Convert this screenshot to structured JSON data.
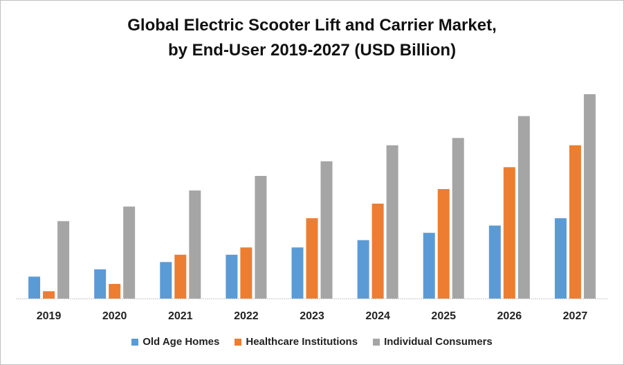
{
  "chart_data": {
    "type": "bar",
    "title": "Global Electric Scooter Lift and Carrier Market,",
    "subtitle": "by End-User 2019-2027 (USD Billion)",
    "xlabel": "",
    "ylabel": "",
    "categories": [
      "2019",
      "2020",
      "2021",
      "2022",
      "2023",
      "2024",
      "2025",
      "2026",
      "2027"
    ],
    "series": [
      {
        "name": "Old Age Homes",
        "color": "#5B9BD5",
        "values": [
          1.5,
          2.0,
          2.5,
          3.0,
          3.5,
          4.0,
          4.5,
          5.0,
          5.5
        ]
      },
      {
        "name": "Healthcare Institutions",
        "color": "#ED7D31",
        "values": [
          0.5,
          1.0,
          3.0,
          3.5,
          5.5,
          6.5,
          7.5,
          9.0,
          10.5
        ]
      },
      {
        "name": "Individual Consumers",
        "color": "#A5A5A5",
        "values": [
          5.3,
          6.3,
          7.4,
          8.4,
          9.4,
          10.5,
          11.0,
          12.5,
          14.0
        ]
      }
    ],
    "ylim": [
      0,
      14
    ],
    "grid": false,
    "legend": "bottom",
    "value_note": "No y-axis shown; values are relative estimates"
  }
}
